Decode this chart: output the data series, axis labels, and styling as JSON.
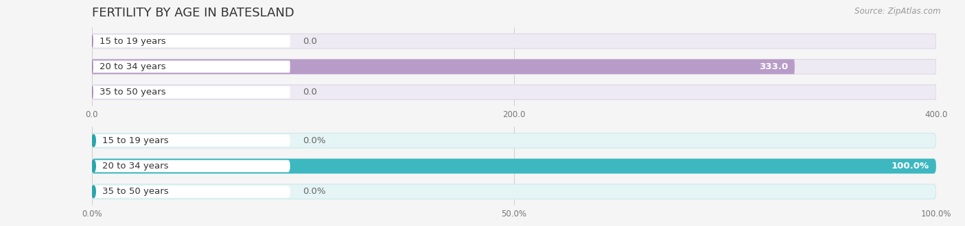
{
  "title": "FERTILITY BY AGE IN BATESLAND",
  "source": "Source: ZipAtlas.com",
  "top_chart": {
    "categories": [
      "15 to 19 years",
      "20 to 34 years",
      "35 to 50 years"
    ],
    "values": [
      0.0,
      333.0,
      0.0
    ],
    "xlim": [
      0,
      400.0
    ],
    "xticks": [
      0.0,
      200.0,
      400.0
    ],
    "bar_color": "#b89cc8",
    "bar_color_circle": "#9b7bb5",
    "bar_bg_color": "#eeeaf3",
    "bar_bg_border": "#ddd8e8",
    "label_inside_color": "#ffffff",
    "label_outside_color": "#666666"
  },
  "bottom_chart": {
    "categories": [
      "15 to 19 years",
      "20 to 34 years",
      "35 to 50 years"
    ],
    "values": [
      0.0,
      100.0,
      0.0
    ],
    "xlim": [
      0,
      100.0
    ],
    "xticks": [
      0.0,
      50.0,
      100.0
    ],
    "bar_color": "#3db8c0",
    "bar_color_circle": "#2aa5ad",
    "bar_bg_color": "#e5f4f5",
    "bar_bg_border": "#cce8ea",
    "label_inside_color": "#ffffff",
    "label_outside_color": "#666666"
  },
  "background_color": "#f5f5f5",
  "title_fontsize": 13,
  "label_fontsize": 9.5,
  "tick_fontsize": 8.5,
  "source_fontsize": 8.5
}
